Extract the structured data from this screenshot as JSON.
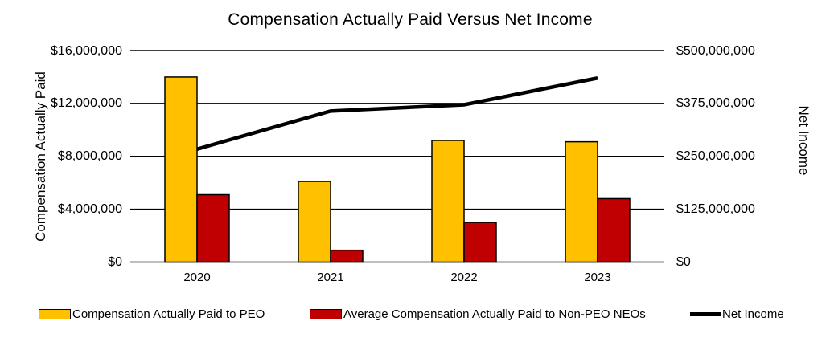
{
  "chart_data": {
    "type": "combo-bar-line",
    "title": "Compensation Actually Paid Versus Net Income",
    "categories": [
      "2020",
      "2021",
      "2022",
      "2023"
    ],
    "bar_series": [
      {
        "name": "Compensation Actually Paid to PEO",
        "color": "#FFC000",
        "axis": "left",
        "values": [
          14000000,
          6100000,
          9200000,
          9100000
        ]
      },
      {
        "name": "Average Compensation Actually Paid to Non-PEO NEOs",
        "color": "#C00000",
        "axis": "left",
        "values": [
          5100000,
          900000,
          3000000,
          4800000
        ]
      }
    ],
    "line_series": {
      "name": "Net Income",
      "color": "#000000",
      "axis": "right",
      "values": [
        267000000,
        357000000,
        372000000,
        435000000
      ]
    },
    "left_axis": {
      "title": "Compensation Actually Paid",
      "min": 0,
      "max": 16000000,
      "tick_labels": [
        "$0",
        "$4,000,000",
        "$8,000,000",
        "$12,000,000",
        "$16,000,000"
      ]
    },
    "right_axis": {
      "title": "Net Income",
      "min": 0,
      "max": 500000000,
      "tick_labels": [
        "$0",
        "$125,000,000",
        "$250,000,000",
        "$375,000,000",
        "$500,000,000"
      ]
    },
    "grid": true,
    "legend_position": "bottom"
  }
}
